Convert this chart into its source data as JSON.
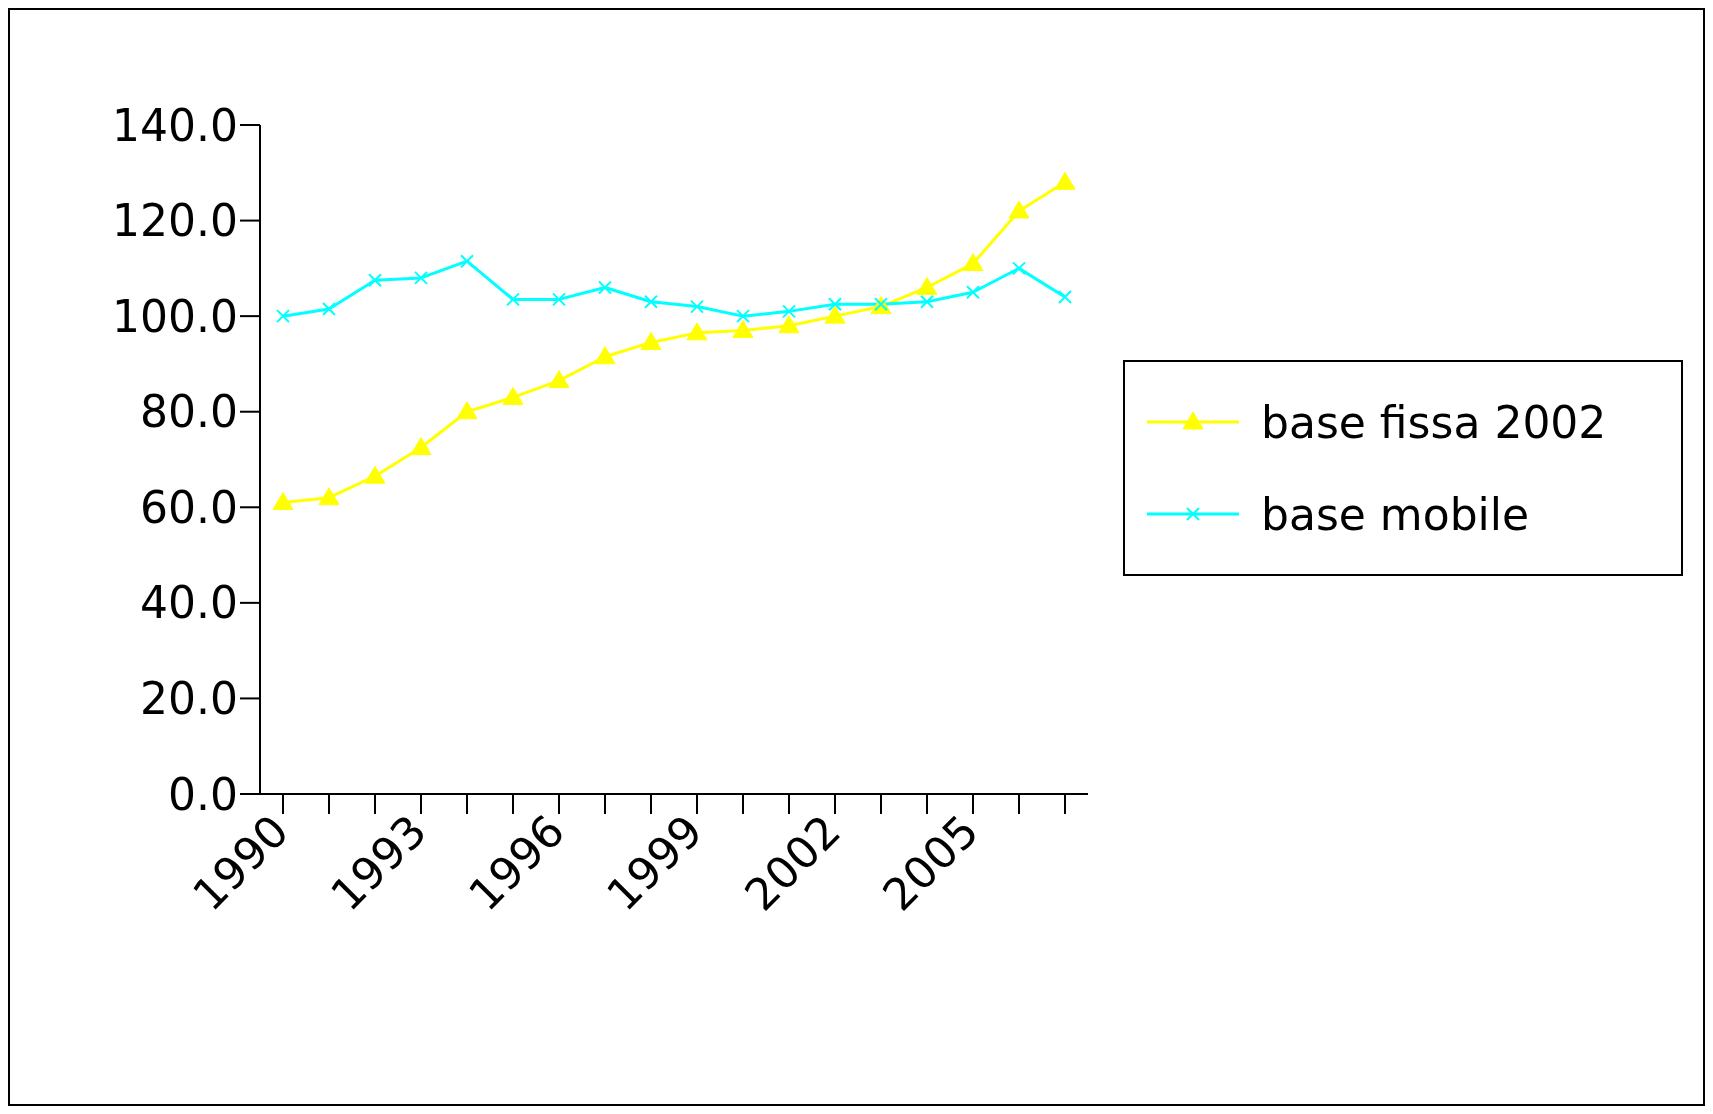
{
  "chart_data": {
    "type": "line",
    "categories": [
      "1990",
      null,
      null,
      "1993",
      null,
      null,
      "1996",
      null,
      null,
      "1999",
      null,
      null,
      "2002",
      null,
      null,
      "2005",
      null,
      null
    ],
    "series": [
      {
        "name": "base fissa 2002",
        "color": "#ffff00",
        "marker": "triangle",
        "values": [
          61,
          62,
          66.5,
          72.5,
          80,
          83,
          86.5,
          91.5,
          94.5,
          96.5,
          97,
          98,
          100,
          102,
          106,
          111,
          122,
          128
        ]
      },
      {
        "name": "base mobile",
        "color": "#00ffff",
        "marker": "cross",
        "values": [
          100,
          101.5,
          107.5,
          108,
          111.5,
          103.5,
          103.5,
          106,
          103,
          102,
          100,
          101,
          102.5,
          102.5,
          103,
          105,
          110,
          104
        ]
      }
    ],
    "ylim": [
      0,
      140
    ],
    "yticks": [
      {
        "value": 0,
        "label": "0.0"
      },
      {
        "value": 20,
        "label": "20.0"
      },
      {
        "value": 40,
        "label": "40.0"
      },
      {
        "value": 60,
        "label": "60.0"
      },
      {
        "value": 80,
        "label": "80.0"
      },
      {
        "value": 100,
        "label": "100.0"
      },
      {
        "value": 120,
        "label": "120.0"
      },
      {
        "value": 140,
        "label": "140.0"
      }
    ],
    "grid": false,
    "legend": "right",
    "line_style": "solid"
  }
}
